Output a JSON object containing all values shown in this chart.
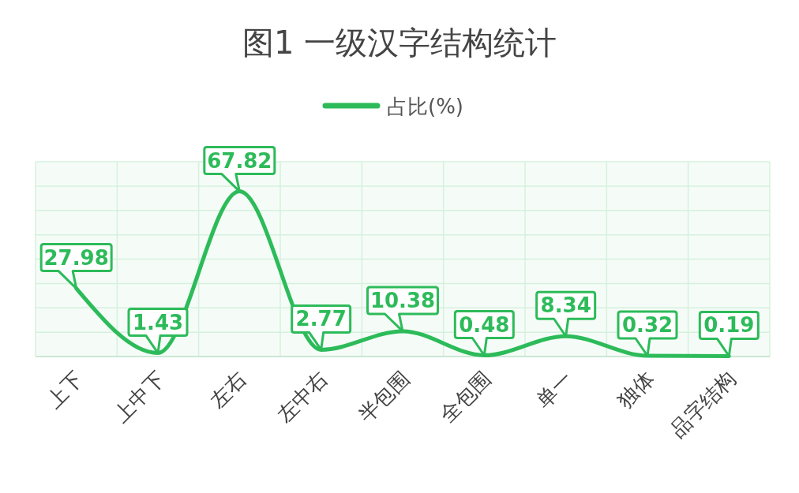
{
  "chart_data": {
    "type": "line",
    "title": "图1 一级汉字结构统计",
    "categories": [
      "上下",
      "上中下",
      "左右",
      "左中右",
      "半包围",
      "全包围",
      "单一",
      "独体",
      "品字结构"
    ],
    "series": [
      {
        "name": "占比(%)",
        "color": "#2dbb5a",
        "values": [
          27.98,
          1.43,
          67.82,
          2.77,
          10.38,
          0.48,
          8.34,
          0.32,
          0.19
        ]
      }
    ],
    "ylim": [
      0,
      80
    ],
    "yticks": [
      {
        "value": 0,
        "label": null
      },
      {
        "value": 10,
        "label": null
      },
      {
        "value": 20,
        "label": null
      },
      {
        "value": 30,
        "label": null
      },
      {
        "value": 40,
        "label": null
      },
      {
        "value": 50,
        "label": null
      },
      {
        "value": 60,
        "label": null
      },
      {
        "value": 70,
        "label": null
      },
      {
        "value": 80,
        "label": null
      }
    ],
    "tick_labels": "x",
    "grid": true,
    "legend": "top",
    "marker": "none",
    "line_style": "solid",
    "data_labels": true
  }
}
